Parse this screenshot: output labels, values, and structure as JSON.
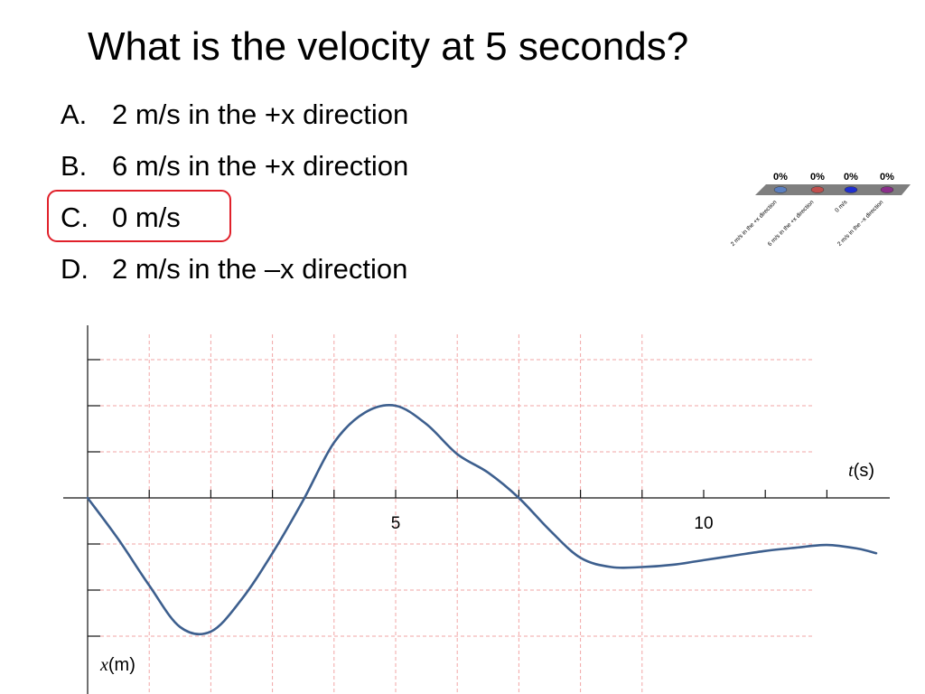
{
  "question": "What is the velocity at 5 seconds?",
  "choices": [
    {
      "letter": "A.",
      "text": "2 m/s in the +x direction"
    },
    {
      "letter": "B.",
      "text": "6 m/s in the +x direction"
    },
    {
      "letter": "C.",
      "text": "0 m/s"
    },
    {
      "letter": "D.",
      "text": "2 m/s in the –x direction"
    }
  ],
  "highlighted_choice": "C.",
  "poll": {
    "results": [
      "0%",
      "0%",
      "0%",
      "0%"
    ],
    "labels": [
      "2 m/s in the +x direction",
      "6 m/s in the +x direction",
      "0 m/s",
      "2 m/s in the –x direction"
    ],
    "colors": [
      "#5b7fc0",
      "#c04f4d",
      "#1f2fd0",
      "#8a2f8a"
    ],
    "platform_color": "#7f7f7f"
  },
  "chart_data": {
    "type": "line",
    "xlabel_var": "t",
    "xlabel_unit": "(s)",
    "ylabel_var": "x",
    "ylabel_unit": "(m)",
    "xtick_labels": [
      {
        "x": 5,
        "label": "5"
      },
      {
        "x": 10,
        "label": "10"
      }
    ],
    "xlim": [
      0,
      13
    ],
    "ylim": [
      -3,
      3
    ],
    "grid": true,
    "line_color": "#3d5f8e",
    "grid_color": "#f2a5a5",
    "series": [
      {
        "x": [
          0,
          0.5,
          1,
          1.5,
          2,
          2.5,
          3,
          3.5,
          4,
          4.5,
          5,
          5.5,
          6,
          6.5,
          7,
          7.5,
          8,
          8.5,
          9,
          9.5,
          10,
          10.5,
          11,
          11.5,
          12,
          12.5,
          12.8
        ],
        "y": [
          0,
          -0.9,
          -1.9,
          -2.8,
          -2.9,
          -2.2,
          -1.2,
          -0.05,
          1.2,
          1.85,
          2.0,
          1.6,
          0.95,
          0.55,
          0.0,
          -0.7,
          -1.3,
          -1.5,
          -1.5,
          -1.45,
          -1.35,
          -1.25,
          -1.15,
          -1.08,
          -1.02,
          -1.1,
          -1.2
        ]
      }
    ]
  }
}
